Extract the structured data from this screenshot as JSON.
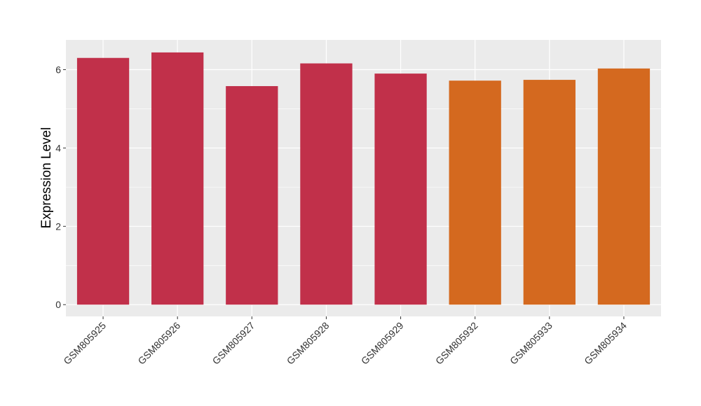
{
  "chart_data": {
    "type": "bar",
    "title": "",
    "xlabel": "",
    "ylabel": "Expression Level",
    "categories": [
      "GSM805925",
      "GSM805926",
      "GSM805927",
      "GSM805928",
      "GSM805929",
      "GSM805932",
      "GSM805933",
      "GSM805934"
    ],
    "values": [
      6.3,
      6.44,
      5.58,
      6.16,
      5.9,
      5.72,
      5.74,
      6.03
    ],
    "bar_colors": [
      "#c1304a",
      "#c1304a",
      "#c1304a",
      "#c1304a",
      "#c1304a",
      "#d4691f",
      "#d4691f",
      "#d4691f"
    ],
    "yticks": [
      0,
      2,
      4,
      6
    ],
    "ylim": [
      -0.3,
      6.76
    ],
    "grid": true,
    "legend": "none",
    "colors": {
      "panel": "#ebebeb",
      "grid": "#ffffff"
    }
  }
}
